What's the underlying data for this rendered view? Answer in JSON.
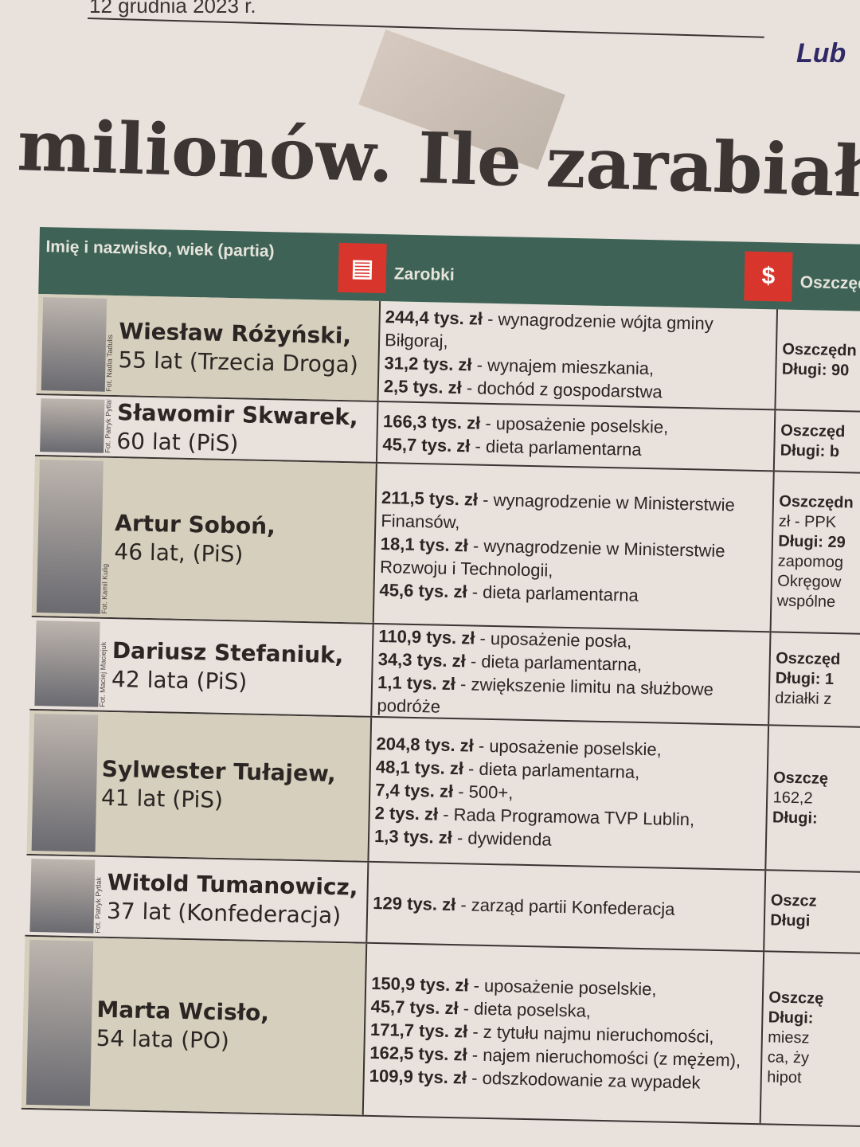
{
  "date": "12 grudnia 2023 r.",
  "brand": "Lub",
  "headline": "milionów. Ile zarabiał",
  "header": {
    "name_col": "Imię i nazwisko, wiek (partia)",
    "earnings_col": "Zarobki",
    "savings_col": "Oszczęd",
    "earnings_icon": "newspaper-icon",
    "savings_icon": "coins-icon"
  },
  "rows": [
    {
      "name": "Wiesław Różyński,",
      "details": "55 lat (Trzecia Droga)",
      "photo_credit": "Fot. Nadia Tadulis",
      "earnings": [
        {
          "amount": "244,4 tys. zł",
          "desc": " - wynagrodzenie wójta gminy Biłgoraj,"
        },
        {
          "amount": "31,2 tys. zł",
          "desc": " - wynajem mieszkania,"
        },
        {
          "amount": "2,5 tys. zł",
          "desc": " - dochód z gospodarstwa"
        }
      ],
      "savings": [
        "Oszczędn",
        "Długi: 90"
      ]
    },
    {
      "name": "Sławomir Skwarek,",
      "details": "60 lat (PiS)",
      "photo_credit": "Fot. Patryk Pytlak",
      "earnings": [
        {
          "amount": "166,3 tys. zł",
          "desc": " - uposażenie poselskie,"
        },
        {
          "amount": "45,7 tys. zł",
          "desc": " - dieta parlamentarna"
        }
      ],
      "savings": [
        "Oszczęd",
        "Długi: b"
      ]
    },
    {
      "name": "Artur Soboń,",
      "details": "46 lat, (PiS)",
      "photo_credit": "Fot. Kamil Kulig",
      "earnings": [
        {
          "amount": "211,5 tys. zł",
          "desc": " - wynagrodzenie w Ministerstwie Finansów,"
        },
        {
          "amount": "18,1 tys. zł",
          "desc": " - wynagrodzenie w Ministerstwie Rozwoju i Technologii,"
        },
        {
          "amount": "45,6 tys. zł",
          "desc": " - dieta parlamentarna"
        }
      ],
      "savings": [
        "Oszczędn",
        "zł - PPK",
        "Długi: 29",
        "zapomog",
        "Okręgow",
        "wspólne"
      ]
    },
    {
      "name": "Dariusz Stefaniuk,",
      "details": "42 lata (PiS)",
      "photo_credit": "Fot. Maciej Maciejuk",
      "earnings": [
        {
          "amount": "110,9 tys. zł",
          "desc": " - uposażenie posła,"
        },
        {
          "amount": "34,3 tys. zł",
          "desc": " - dieta parlamentarna,"
        },
        {
          "amount": "1,1 tys. zł",
          "desc": " - zwiększenie limitu na służbowe podróże"
        }
      ],
      "savings": [
        "Oszczęd",
        "Długi: 1",
        "działki z"
      ]
    },
    {
      "name": "Sylwester Tułajew,",
      "details": "41 lat (PiS)",
      "photo_credit": "",
      "earnings": [
        {
          "amount": "204,8 tys. zł",
          "desc": " - uposażenie poselskie,"
        },
        {
          "amount": "48,1 tys. zł",
          "desc": " - dieta parlamentarna,"
        },
        {
          "amount": "7,4 tys. zł",
          "desc": " - 500+,"
        },
        {
          "amount": "2 tys. zł",
          "desc": " - Rada Programowa TVP Lublin,"
        },
        {
          "amount": "1,3 tys. zł",
          "desc": " - dywidenda"
        }
      ],
      "savings": [
        "Oszczę",
        "162,2",
        "Długi:"
      ]
    },
    {
      "name": "Witold Tumanowicz,",
      "details": "37 lat (Konfederacja)",
      "photo_credit": "Fot. Patryk Pytlak",
      "earnings": [
        {
          "amount": "129 tys. zł",
          "desc": " - zarząd partii Konfederacja"
        }
      ],
      "savings": [
        "Oszcz",
        "Długi"
      ]
    },
    {
      "name": "Marta Wcisło,",
      "details": "54 lata (PO)",
      "photo_credit": "",
      "earnings": [
        {
          "amount": "150,9 tys. zł",
          "desc": " - uposażenie poselskie,"
        },
        {
          "amount": "45,7 tys. zł",
          "desc": " - dieta poselska,"
        },
        {
          "amount": "171,7 tys. zł",
          "desc": " - z tytułu najmu nieruchomości,"
        },
        {
          "amount": "162,5 tys. zł",
          "desc": " - najem nieruchomości (z mężem),"
        },
        {
          "amount": "109,9 tys. zł",
          "desc": " - odszkodowanie za wypadek"
        }
      ],
      "savings": [
        "Oszczę",
        "Długi:",
        "miesz",
        "ca, ży",
        "hipot"
      ]
    }
  ]
}
